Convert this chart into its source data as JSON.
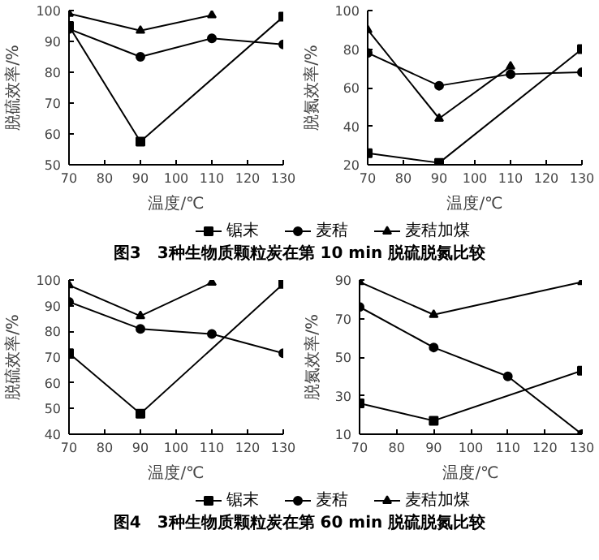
{
  "chart_data": [
    {
      "type": "line",
      "xlabel": "温度/℃",
      "ylabel": "脱硫效率/%",
      "xlim": [
        70,
        130
      ],
      "xticks": [
        70,
        80,
        90,
        100,
        110,
        120,
        130
      ],
      "ylim": [
        50,
        100
      ],
      "yticks": [
        50,
        60,
        70,
        80,
        90,
        100
      ],
      "grid": false,
      "legend": "bottom",
      "annotations": [
        "图3　3种生物质颗粒炭在第 10 min 脱硫脱氮比较"
      ],
      "series": [
        {
          "name": "锯末",
          "color": "#000000",
          "marker": "square",
          "x": [
            70,
            90,
            130
          ],
          "values": [
            95,
            57.5,
            98
          ]
        },
        {
          "name": "麦秸",
          "color": "#000000",
          "marker": "circle",
          "x": [
            70,
            90,
            110,
            130
          ],
          "values": [
            94,
            85,
            91,
            89
          ]
        },
        {
          "name": "麦秸加煤",
          "color": "#000000",
          "marker": "triangle",
          "x": [
            70,
            90,
            110
          ],
          "values": [
            99,
            93.5,
            98.5
          ]
        }
      ]
    },
    {
      "type": "line",
      "xlabel": "温度/℃",
      "ylabel": "脱氮效率/%",
      "xlim": [
        70,
        130
      ],
      "xticks": [
        70,
        80,
        90,
        100,
        110,
        120,
        130
      ],
      "ylim": [
        20,
        100
      ],
      "yticks": [
        20,
        40,
        60,
        80,
        100
      ],
      "grid": false,
      "series": [
        {
          "color": "#000000",
          "marker": "square",
          "x": [
            70,
            90,
            130
          ],
          "values": [
            26,
            21,
            80
          ]
        },
        {
          "color": "#000000",
          "marker": "circle",
          "x": [
            70,
            90,
            110,
            130
          ],
          "values": [
            78,
            61,
            67,
            68
          ]
        },
        {
          "color": "#000000",
          "marker": "triangle",
          "x": [
            70,
            90,
            110
          ],
          "values": [
            90,
            44,
            71
          ]
        }
      ]
    },
    {
      "type": "line",
      "xlabel": "温度/℃",
      "ylabel": "脱硫效率/%",
      "xlim": [
        70,
        130
      ],
      "xticks": [
        70,
        80,
        90,
        100,
        110,
        120,
        130
      ],
      "ylim": [
        40,
        100
      ],
      "yticks": [
        40,
        50,
        60,
        70,
        80,
        90,
        100
      ],
      "grid": false,
      "legend": "bottom",
      "annotations": [
        "图4　3种生物质颗粒炭在第 60 min 脱硫脱氮比较"
      ],
      "series": [
        {
          "name": "锯末",
          "color": "#000000",
          "marker": "square",
          "x": [
            70,
            90,
            130
          ],
          "values": [
            71.5,
            48,
            98.5
          ]
        },
        {
          "name": "麦秸",
          "color": "#000000",
          "marker": "circle",
          "x": [
            70,
            90,
            110,
            130
          ],
          "values": [
            91.5,
            81,
            79,
            71.5
          ]
        },
        {
          "name": "麦秸加煤",
          "color": "#000000",
          "marker": "triangle",
          "x": [
            70,
            90,
            110
          ],
          "values": [
            98,
            86,
            99
          ]
        }
      ]
    },
    {
      "type": "line",
      "xlabel": "温度/℃",
      "ylabel": "脱氮效率/%",
      "xlim": [
        70,
        130
      ],
      "xticks": [
        70,
        80,
        90,
        100,
        110,
        120,
        130
      ],
      "ylim": [
        10,
        90
      ],
      "yticks": [
        10,
        30,
        50,
        70,
        90
      ],
      "grid": false,
      "series": [
        {
          "color": "#000000",
          "marker": "square",
          "x": [
            70,
            90,
            130
          ],
          "values": [
            26,
            17,
            43
          ]
        },
        {
          "color": "#000000",
          "marker": "circle",
          "x": [
            70,
            90,
            110,
            130
          ],
          "values": [
            76,
            55,
            40,
            10
          ]
        },
        {
          "color": "#000000",
          "marker": "triangle",
          "x": [
            70,
            90,
            130
          ],
          "values": [
            89,
            72,
            89
          ]
        }
      ]
    }
  ]
}
